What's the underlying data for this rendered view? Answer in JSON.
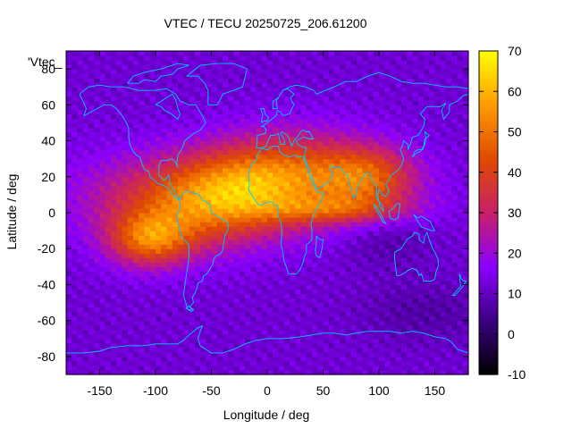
{
  "chart_data": {
    "type": "heatmap",
    "title": "VTEC / TECU 20250725_206.61200",
    "xlabel": "Longitude / deg",
    "ylabel": "Latitude / deg",
    "series_label": "'Vtec_",
    "xlim": [
      -180,
      180
    ],
    "ylim": [
      -90,
      90
    ],
    "x_ticks": [
      -150,
      -100,
      -50,
      0,
      50,
      100,
      150
    ],
    "y_ticks": [
      -80,
      -60,
      -40,
      -20,
      0,
      20,
      40,
      60,
      80
    ],
    "colorbar": {
      "range": [
        -10,
        70
      ],
      "ticks": [
        -10,
        0,
        10,
        20,
        30,
        40,
        50,
        60,
        70
      ],
      "palette": [
        "#000000",
        "#3a0080",
        "#8a00ff",
        "#c8206a",
        "#e04a00",
        "#ff9a00",
        "#ffff00"
      ]
    },
    "grid_resolution": {
      "dlon": 5,
      "dlat": 2.5
    },
    "features": {
      "background_vtec": 12,
      "equatorial_crest_peak_vtec": 65,
      "crest_center": {
        "lon": -25,
        "lat": 8
      },
      "south_america_secondary_peak": {
        "lon": -105,
        "lat": -15,
        "vtec": 55
      },
      "asia_band_peak": {
        "lon": 90,
        "lat": 20,
        "vtec": 38
      }
    },
    "colors": {
      "coastline": "#00c8ff",
      "frame": "#000000"
    }
  }
}
